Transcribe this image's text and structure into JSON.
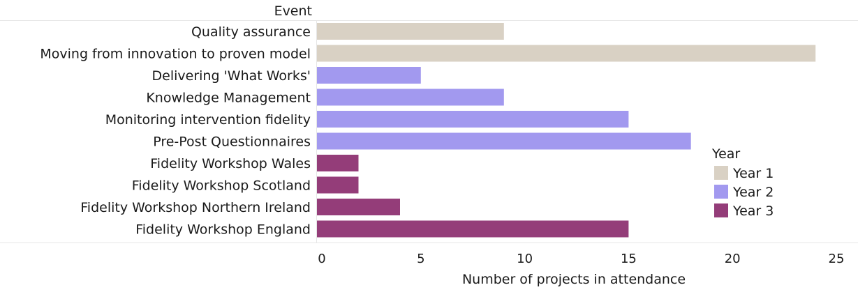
{
  "chart_data": {
    "type": "bar",
    "orientation": "horizontal",
    "y_axis_title": "Event",
    "x_axis_title": "Number of projects in attendance",
    "xlim": [
      0,
      25
    ],
    "x_ticks": [
      "0",
      "5",
      "10",
      "15",
      "20",
      "25"
    ],
    "grid": false,
    "legend": {
      "title": "Year",
      "placement": "right",
      "items": [
        {
          "label": "Year 1",
          "color": "#d9d1c4"
        },
        {
          "label": "Year 2",
          "color": "#a299ef"
        },
        {
          "label": "Year 3",
          "color": "#943d79"
        }
      ]
    },
    "bars": [
      {
        "category": "Quality assurance",
        "value": 9,
        "year": "Year 1"
      },
      {
        "category": "Moving from innovation to proven model",
        "value": 24,
        "year": "Year 1"
      },
      {
        "category": "Delivering 'What Works'",
        "value": 5,
        "year": "Year 2"
      },
      {
        "category": "Knowledge Management",
        "value": 9,
        "year": "Year 2"
      },
      {
        "category": "Monitoring intervention fidelity",
        "value": 15,
        "year": "Year 2"
      },
      {
        "category": "Pre-Post Questionnaires",
        "value": 18,
        "year": "Year 2"
      },
      {
        "category": "Fidelity Workshop Wales",
        "value": 2,
        "year": "Year 3"
      },
      {
        "category": "Fidelity Workshop Scotland",
        "value": 2,
        "year": "Year 3"
      },
      {
        "category": "Fidelity Workshop Northern Ireland",
        "value": 4,
        "year": "Year 3"
      },
      {
        "category": "Fidelity Workshop England",
        "value": 15,
        "year": "Year 3"
      }
    ]
  }
}
